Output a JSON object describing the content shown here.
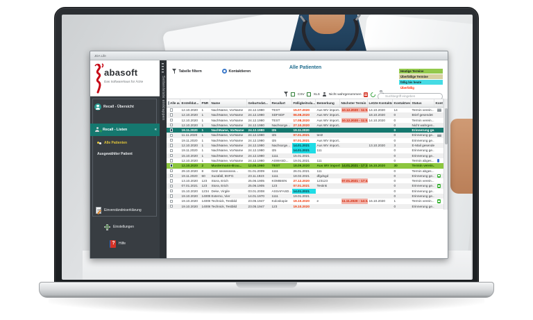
{
  "window": {
    "title": "JDA Life"
  },
  "sidebar": {
    "logo": {
      "brand": "abasoft",
      "tagline": "Das Softwarehaus für Ärzte"
    },
    "collapse_label": "Seitenleiste einklappen",
    "items": [
      {
        "label": "Recall - Übersicht"
      },
      {
        "label": "Recall - Listen"
      },
      {
        "label": "Alle Patienten"
      },
      {
        "label": "Ausgewählter Patient"
      }
    ],
    "footer_items": [
      {
        "label": "Einverständniserklärung"
      },
      {
        "label": "Einstellungen"
      },
      {
        "label": "Hilfe"
      }
    ]
  },
  "toolbar": {
    "filter_label": "Tabelle filtern",
    "contact_label": "Kontaktieren",
    "title": "Alle Patienten",
    "legend": [
      {
        "label": "Heutige Termine",
        "bg": "#93c94c"
      },
      {
        "label": "Überfällige Termine",
        "bg": "#d6d1a0"
      },
      {
        "label": "fällig bis heute",
        "bg": "#45dbe4"
      },
      {
        "label": "Überfällig",
        "bg": "#ffffff",
        "color": "#ff2600"
      }
    ],
    "csv_label": "CSV",
    "xls_label": "XLS",
    "not_attended_label": "Nicht wahrgenommen",
    "search_placeholder": "Suchbegriff eingeben"
  },
  "table": {
    "columns": [
      "Alle ausge...",
      "Erstelldat...",
      "PNR",
      "Name",
      "Geburtsdat...",
      "Recallart",
      "Fälligkeitsda...",
      "Bemerkung",
      "Nächster Termin",
      "Letzte Kontaktaufn...",
      "Kontaktversu...",
      "Status",
      "Kontaktmeth..."
    ],
    "rows": [
      {
        "checked": false,
        "created": "12.10.2020",
        "pnr": "1",
        "name": "NachName, VorName",
        "birth": "24.12.1980",
        "art": "TEST",
        "due": "15.07.2020",
        "dueStyle": "red",
        "note": "Aus WV import...",
        "next": "10.12.2020 - 11:0...",
        "last": "14.10.2020",
        "tries": "14",
        "status": "Termin verein...",
        "method": "printer",
        "style": ""
      },
      {
        "checked": false,
        "created": "12.10.2020",
        "pnr": "1",
        "name": "NachName, VorName",
        "birth": "24.12.1980",
        "art": "SDFSDF",
        "due": "06.08.2020",
        "dueStyle": "red",
        "note": "Aus WV import...",
        "next": "",
        "last": "18.10.2020",
        "tries": "0",
        "status": "Brief gesendet",
        "method": "",
        "style": ""
      },
      {
        "checked": false,
        "created": "12.10.2020",
        "pnr": "1",
        "name": "NachName, VorName",
        "birth": "24.12.1980",
        "art": "TEST",
        "due": "17.08.2020",
        "dueStyle": "red",
        "note": "Aus WV import...",
        "next": "10.12.2020 - 11:0...",
        "last": "14.10.2020",
        "tries": "0",
        "status": "Termin verein...",
        "method": "",
        "style": ""
      },
      {
        "checked": false,
        "created": "12.10.2020",
        "pnr": "1",
        "name": "NachName, VorName",
        "birth": "24.12.1980",
        "art": "Nachsorge...",
        "due": "27.10.2020",
        "dueStyle": "red",
        "note": "Aus WV import...",
        "next": "",
        "last": "",
        "tries": "0",
        "status": "Nicht wahrgen...",
        "method": "",
        "style": ""
      },
      {
        "checked": true,
        "created": "19.11.2020",
        "pnr": "1",
        "name": "NachName, VorName",
        "birth": "24.12.1980",
        "art": "I25",
        "due": "19.11.2020",
        "dueStyle": "",
        "note": "",
        "next": "",
        "last": "",
        "tries": "0",
        "status": "Erinnerung ge...",
        "method": "",
        "style": "sel"
      },
      {
        "checked": false,
        "created": "11.11.2020",
        "pnr": "1",
        "name": "NachName, VorName",
        "birth": "24.12.1980",
        "art": "I25",
        "due": "07.01.2021",
        "dueStyle": "red",
        "note": "test!",
        "next": "",
        "last": "",
        "tries": "0",
        "status": "Erinnerung ge...",
        "method": "printer",
        "style": ""
      },
      {
        "checked": false,
        "created": "19.11.2020",
        "pnr": "1",
        "name": "NachName, VorName",
        "birth": "24.12.1980",
        "art": "I25",
        "due": "07.01.2021",
        "dueStyle": "red",
        "note": "Aus WV import...",
        "next": "",
        "last": "",
        "tries": "0",
        "status": "Erinnerung ge...",
        "method": "",
        "style": ""
      },
      {
        "checked": false,
        "created": "12.10.2020",
        "pnr": "1",
        "name": "NachName, VorName",
        "birth": "24.12.1980",
        "art": "Nachsorge...",
        "due": "14.01.2021",
        "dueStyle": "cyan",
        "note": "Aus WV import...",
        "next": "",
        "last": "13.10.2020",
        "tries": "3",
        "status": "E-Mail gesendet",
        "method": "",
        "style": ""
      },
      {
        "checked": false,
        "created": "19.11.2020",
        "pnr": "1",
        "name": "NachName, VorName",
        "birth": "24.12.1980",
        "art": "I25",
        "due": "14.01.2021",
        "dueStyle": "cyan",
        "note": "111",
        "next": "",
        "last": "",
        "tries": "0",
        "status": "Erinnerung ge...",
        "method": "",
        "style": ""
      },
      {
        "checked": false,
        "created": "15.10.2020",
        "pnr": "1",
        "name": "NachName, VorName",
        "birth": "24.12.1980",
        "art": "1111",
        "due": "15.01.2021",
        "dueStyle": "",
        "note": "",
        "next": "",
        "last": "",
        "tries": "0",
        "status": "Erinnerung ge...",
        "method": "",
        "style": ""
      },
      {
        "checked": false,
        "created": "12.10.2020",
        "pnr": "1",
        "name": "NachName, VorName",
        "birth": "24.12.1980",
        "art": "ASWASD...",
        "due": "19.01.2021",
        "dueStyle": "",
        "note": "111",
        "next": "",
        "last": "",
        "tries": "0",
        "status": "Termin abges...",
        "method": "phone",
        "style": ""
      },
      {
        "checked": true,
        "created": "12.10.2020",
        "pnr": "2",
        "name": "Mustermann-Brau...",
        "birth": "12.05.1960",
        "art": "TEST",
        "due": "18.09.2020",
        "dueStyle": "",
        "note": "Aus WV import...",
        "next": "14.01.2021 - 17:3...",
        "last": "16.10.2020",
        "tries": "30",
        "status": "Termin verein...",
        "method": "",
        "style": "grn"
      },
      {
        "checked": false,
        "created": "29.10.2020",
        "pnr": "8",
        "name": "Getz ssssssssss...",
        "birth": "01.01.2009",
        "art": "1111",
        "due": "26.01.2021",
        "dueStyle": "",
        "note": "111",
        "next": "",
        "last": "",
        "tries": "0",
        "status": "Termin abges...",
        "method": "",
        "style": ""
      },
      {
        "checked": false,
        "created": "19.11.2020",
        "pnr": "60",
        "name": "Suzafall, BVFG",
        "birth": "23.11.1923",
        "art": "1111",
        "due": "18.02.2021",
        "dueStyle": "",
        "note": "dfgdsgd",
        "next": "",
        "last": "",
        "tries": "0",
        "status": "Erinnerung ge...",
        "method": "chat",
        "style": ""
      },
      {
        "checked": false,
        "created": "13.10.2020",
        "pnr": "123",
        "name": "Stora, Erich",
        "birth": "25.06.1905",
        "art": "KOMBIEN",
        "due": "27.12.2020",
        "dueStyle": "red",
        "note": "123123",
        "next": "07.01.2021 - 17:4...",
        "last": "",
        "tries": "0",
        "status": "Termin verein...",
        "method": "",
        "style": ""
      },
      {
        "checked": false,
        "created": "07.01.2021",
        "pnr": "123",
        "name": "Stora, Erich",
        "birth": "25.06.1905",
        "art": "123",
        "due": "07.01.2021",
        "dueStyle": "red",
        "note": "Testink",
        "next": "",
        "last": "",
        "tries": "0",
        "status": "Erinnerung ge...",
        "method": "chat",
        "style": ""
      },
      {
        "checked": false,
        "created": "15.10.2020",
        "pnr": "1234",
        "name": "Deke, Virgile",
        "birth": "03.01.2008",
        "art": "ASSAFASD...",
        "due": "14.01.2021",
        "dueStyle": "cyan",
        "note": "",
        "next": "",
        "last": "",
        "tries": "0",
        "status": "Erinnerung ge...",
        "method": "",
        "style": ""
      },
      {
        "checked": false,
        "created": "19.10.2020",
        "pnr": "14005...",
        "name": "Externo, Vier",
        "birth": "14.01.1970",
        "art": "1111",
        "due": "19.01.2021",
        "dueStyle": "",
        "note": "",
        "next": "",
        "last": "",
        "tries": "0",
        "status": "Erinnerung ge...",
        "method": "",
        "style": ""
      },
      {
        "checked": false,
        "created": "19.10.2020",
        "pnr": "14006...",
        "name": "Technick, Testbild",
        "birth": "23.05.1947",
        "art": "Koloskopie",
        "due": "19.10.2020",
        "dueStyle": "red",
        "note": "e",
        "next": "11.11.2020 - 14:3...",
        "last": "16.10.2020",
        "tries": "1",
        "status": "Termin verein...",
        "method": "chat",
        "style": ""
      },
      {
        "checked": false,
        "created": "19.10.2020",
        "pnr": "14006...",
        "name": "Technick, Testbild",
        "birth": "23.05.1947",
        "art": "123",
        "due": "19.10.2020",
        "dueStyle": "red",
        "note": "",
        "next": "",
        "last": "",
        "tries": "0",
        "status": "Erinnerung ge...",
        "method": "",
        "style": ""
      }
    ]
  }
}
